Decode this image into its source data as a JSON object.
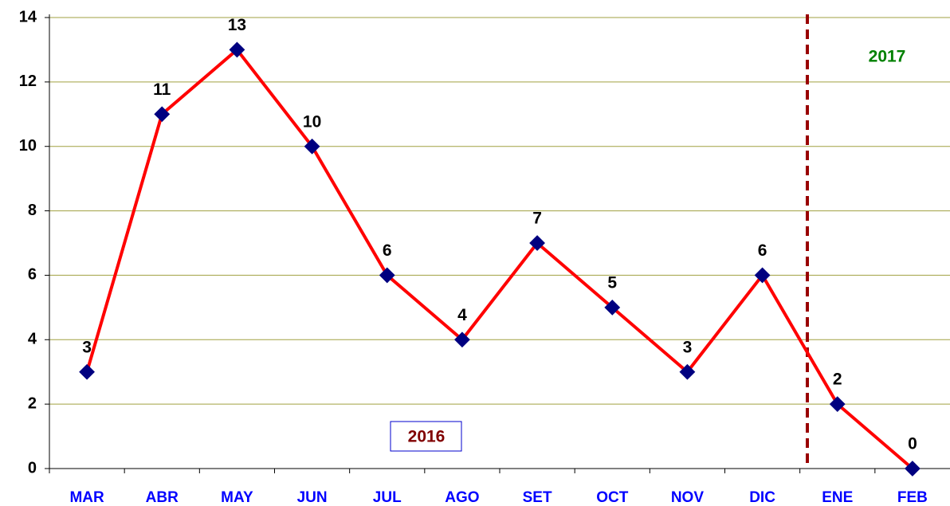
{
  "chart_data": {
    "type": "line",
    "categories": [
      "MAR",
      "ABR",
      "MAY",
      "JUN",
      "JUL",
      "AGO",
      "SET",
      "OCT",
      "NOV",
      "DIC",
      "ENE",
      "FEB"
    ],
    "series": [
      {
        "color": "#ff0000",
        "marker_color": "#000080",
        "values": [
          3,
          11,
          13,
          10,
          6,
          4,
          7,
          5,
          3,
          6,
          2,
          0
        ]
      }
    ],
    "ylim": [
      0,
      14
    ],
    "yticks": [
      0,
      2,
      4,
      6,
      8,
      10,
      12,
      14
    ],
    "grid": true,
    "grid_color": "#a0a040",
    "annotations": [
      {
        "text": "2016",
        "color": "#800000"
      },
      {
        "text": "2017",
        "color": "#008000"
      }
    ]
  }
}
